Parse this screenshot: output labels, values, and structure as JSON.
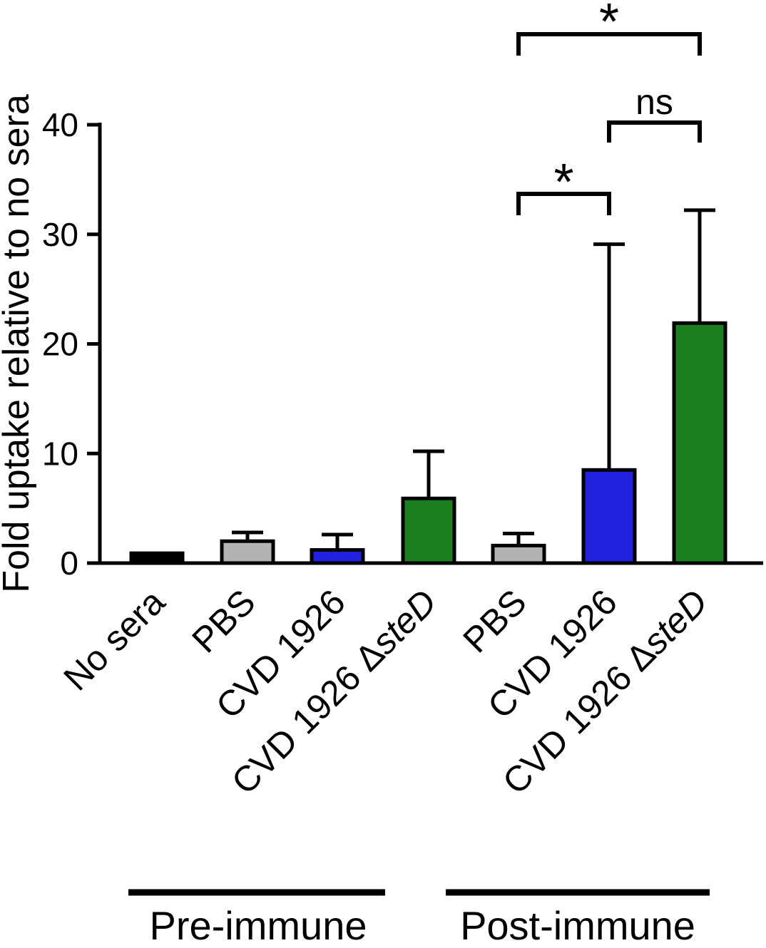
{
  "chart_data": {
    "type": "bar",
    "title": "",
    "xlabel": "",
    "ylabel": "Fold uptake relative to no sera",
    "ylim": [
      0,
      40
    ],
    "yticks": [
      0,
      10,
      20,
      30,
      40
    ],
    "grid": false,
    "legend": false,
    "categories": [
      "No sera",
      "PBS",
      "CVD 1926",
      "CVD 1926 ΔsteD",
      "PBS",
      "CVD 1926",
      "CVD 1926 ΔsteD"
    ],
    "categories_rich": [
      [
        {
          "t": "No sera"
        }
      ],
      [
        {
          "t": "PBS"
        }
      ],
      [
        {
          "t": "CVD 1926"
        }
      ],
      [
        {
          "t": "CVD 1926 Δ"
        },
        {
          "t": "steD",
          "i": true
        }
      ],
      [
        {
          "t": "PBS"
        }
      ],
      [
        {
          "t": "CVD 1926"
        }
      ],
      [
        {
          "t": "CVD 1926 Δ"
        },
        {
          "t": "steD",
          "i": true
        }
      ]
    ],
    "values": [
      0.9,
      2.0,
      1.2,
      5.9,
      1.6,
      8.5,
      21.9
    ],
    "errors_plus": [
      0,
      0.8,
      1.4,
      4.3,
      1.1,
      20.6,
      10.3
    ],
    "bar_colors": [
      "#000000",
      "#b3b3b3",
      "#2121de",
      "#1b7e1f",
      "#b3b3b3",
      "#2121de",
      "#1b7e1f"
    ],
    "groups": [
      {
        "label": "Pre-immune",
        "bars": [
          0,
          1,
          2,
          3
        ]
      },
      {
        "label": "Post-immune",
        "bars": [
          4,
          5,
          6
        ]
      }
    ],
    "significance": [
      {
        "from": 4,
        "to": 6,
        "label": "*"
      },
      {
        "from": 5,
        "to": 6,
        "label": "ns"
      },
      {
        "from": 4,
        "to": 5,
        "label": "*"
      }
    ]
  }
}
